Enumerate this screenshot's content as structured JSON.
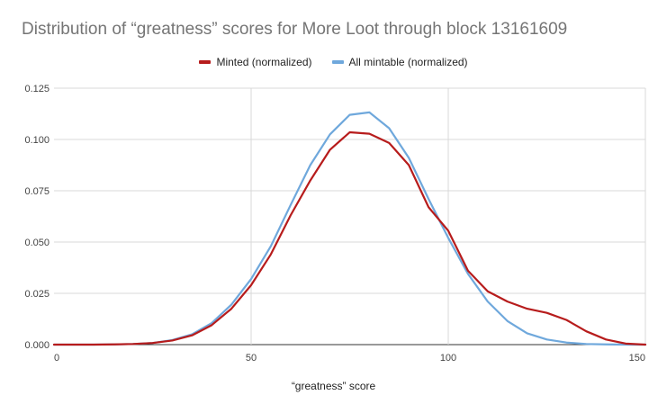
{
  "chart_data": {
    "type": "line",
    "title": "Distribution of “greatness” scores for More Loot through block 13161609",
    "xlabel": "“greatness” score",
    "ylabel": "",
    "xlim": [
      0,
      150
    ],
    "ylim": [
      0,
      0.125
    ],
    "x_ticks": [
      "0",
      "50",
      "100",
      "150"
    ],
    "y_ticks": [
      "0.000",
      "0.025",
      "0.050",
      "0.075",
      "0.100",
      "0.125"
    ],
    "grid": "on",
    "legend_position": "top",
    "x": [
      0,
      5,
      10,
      15,
      20,
      25,
      30,
      35,
      40,
      45,
      50,
      55,
      60,
      65,
      70,
      75,
      80,
      85,
      90,
      95,
      100,
      105,
      110,
      115,
      120,
      125,
      130,
      135,
      140,
      145,
      150
    ],
    "series": [
      {
        "name": "Minted (normalized)",
        "color": "#b71c1c",
        "values": [
          0.0,
          0.0,
          0.0,
          0.0001,
          0.0003,
          0.0008,
          0.002,
          0.0045,
          0.0095,
          0.0175,
          0.029,
          0.044,
          0.063,
          0.08,
          0.095,
          0.1035,
          0.1028,
          0.0983,
          0.0875,
          0.067,
          0.0555,
          0.036,
          0.026,
          0.021,
          0.0175,
          0.0155,
          0.012,
          0.0065,
          0.0025,
          0.0005,
          0.0
        ]
      },
      {
        "name": "All mintable (normalized)",
        "color": "#6fa8dc",
        "values": [
          0.0,
          0.0,
          0.0,
          0.0001,
          0.0003,
          0.0008,
          0.0022,
          0.005,
          0.0105,
          0.0195,
          0.032,
          0.048,
          0.068,
          0.0875,
          0.1025,
          0.112,
          0.1132,
          0.1055,
          0.091,
          0.071,
          0.052,
          0.0345,
          0.021,
          0.0115,
          0.0055,
          0.0025,
          0.001,
          0.0003,
          0.0001,
          0.0,
          0.0
        ]
      }
    ]
  }
}
